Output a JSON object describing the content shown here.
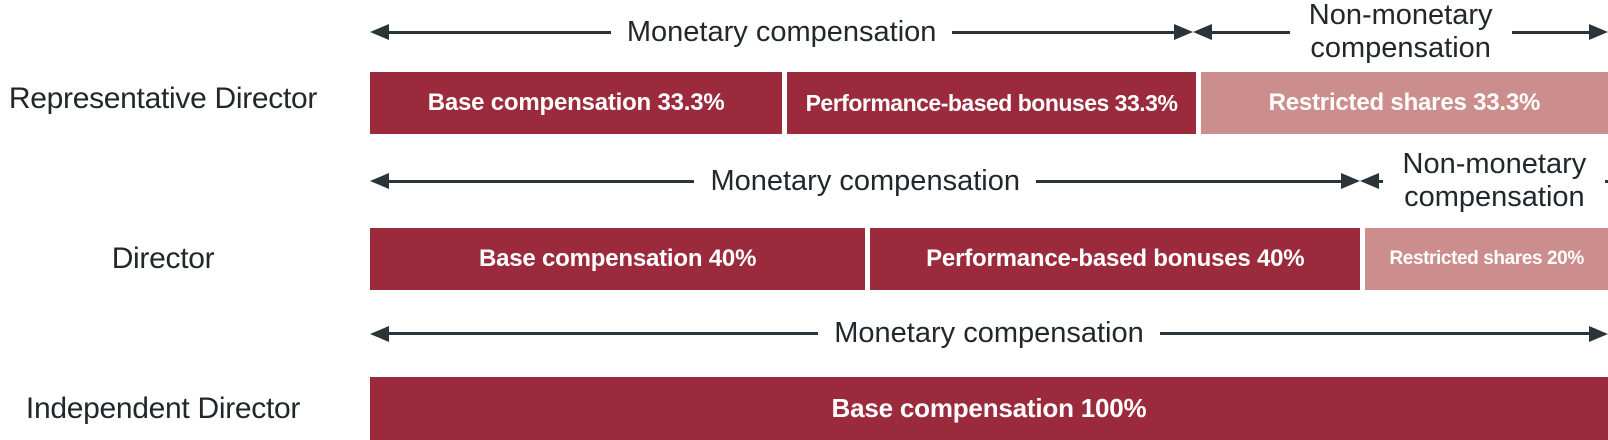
{
  "palette": {
    "monetary_red": "#9B2B3C",
    "non_monetary_pink": "#CC8E8C",
    "arrow": "#2B3438",
    "ink": "#21282C",
    "bar_text": "#FFFFFF",
    "background": "#FFFFFF"
  },
  "rows": [
    {
      "role": "Representative Director",
      "arrows": [
        {
          "label": "Monetary compensation",
          "width_pct": 66.5
        },
        {
          "label": "Non-monetary compensation",
          "width_pct": 33.5
        }
      ],
      "segments": [
        {
          "label": "Base compensation 33.3%",
          "width_pct": 33.3,
          "color": "#9B2B3C"
        },
        {
          "label": "Performance-based bonuses 33.3%",
          "width_pct": 33.4,
          "color": "#9B2B3C"
        },
        {
          "label": "Restricted shares 33.3%",
          "width_pct": 33.3,
          "color": "#CC8E8C"
        }
      ]
    },
    {
      "role": "Director",
      "arrows": [
        {
          "label": "Monetary compensation",
          "width_pct": 80
        },
        {
          "label": "Non-monetary compensation",
          "width_pct": 20
        }
      ],
      "segments": [
        {
          "label": "Base compensation 40%",
          "width_pct": 40,
          "color": "#9B2B3C"
        },
        {
          "label": "Performance-based bonuses 40%",
          "width_pct": 40,
          "color": "#9B2B3C"
        },
        {
          "label": "Restricted shares 20%",
          "width_pct": 20,
          "color": "#CC8E8C"
        }
      ]
    },
    {
      "role": "Independent Director",
      "arrows": [
        {
          "label": "Monetary compensation",
          "width_pct": 100
        }
      ],
      "segments": [
        {
          "label": "Base compensation 100%",
          "width_pct": 100,
          "color": "#9B2B3C"
        }
      ]
    }
  ],
  "chart_data": {
    "type": "bar",
    "stacked": true,
    "orientation": "horizontal",
    "unit": "percent",
    "categories": [
      "Representative Director",
      "Director",
      "Independent Director"
    ],
    "series": [
      {
        "name": "Base compensation",
        "values": [
          33.3,
          40,
          100
        ]
      },
      {
        "name": "Performance-based bonuses",
        "values": [
          33.3,
          40,
          0
        ]
      },
      {
        "name": "Restricted shares",
        "values": [
          33.3,
          20,
          0
        ]
      }
    ],
    "span_annotations": [
      {
        "category": "Representative Director",
        "monetary_label": "Monetary compensation",
        "monetary_span_pct": 66.6,
        "non_monetary_label": "Non-monetary compensation",
        "non_monetary_span_pct": 33.4
      },
      {
        "category": "Director",
        "monetary_label": "Monetary compensation",
        "monetary_span_pct": 80,
        "non_monetary_label": "Non-monetary compensation",
        "non_monetary_span_pct": 20
      },
      {
        "category": "Independent Director",
        "monetary_label": "Monetary compensation",
        "monetary_span_pct": 100,
        "non_monetary_label": null,
        "non_monetary_span_pct": 0
      }
    ],
    "xlim": [
      0,
      100
    ],
    "legend": false,
    "grid": false,
    "title": ""
  }
}
